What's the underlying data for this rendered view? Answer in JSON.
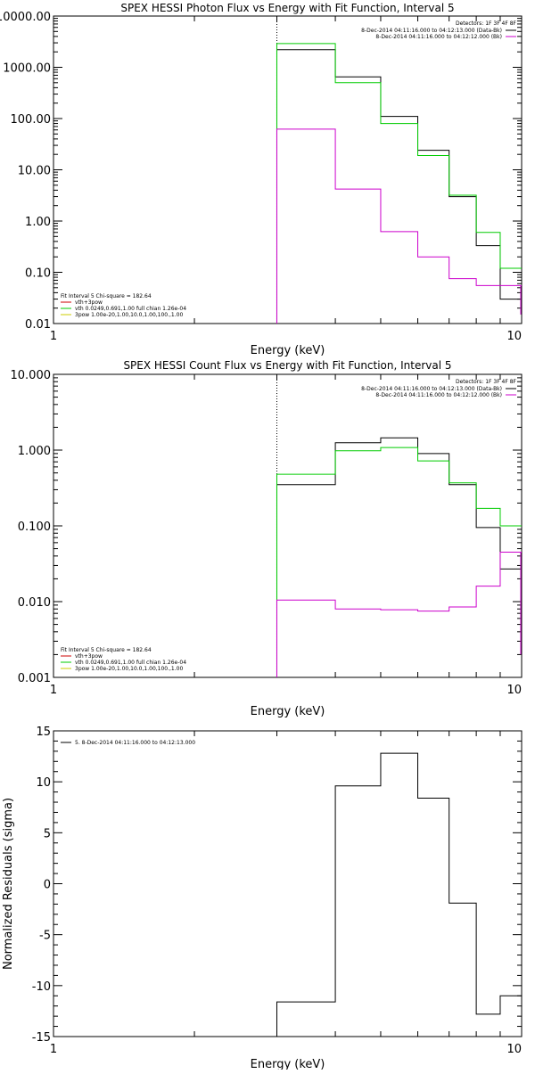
{
  "chart_data": [
    {
      "type": "line",
      "title": "SPEX HESSI Photon Flux vs Energy with Fit Function, Interval 5",
      "xlabel": "Energy (keV)",
      "ylabel": "",
      "xscale": "log",
      "yscale": "log",
      "xlim": [
        1,
        10
      ],
      "ylim": [
        0.01,
        10000
      ],
      "x_ticks": [
        {
          "v": 1,
          "label": "1"
        },
        {
          "v": 10,
          "label": "10"
        }
      ],
      "y_ticks": [
        {
          "v": 0.01,
          "label": "0.01"
        },
        {
          "v": 0.1,
          "label": "0.10"
        },
        {
          "v": 1,
          "label": "1.00"
        },
        {
          "v": 10,
          "label": "10.00"
        },
        {
          "v": 100,
          "label": "100.00"
        },
        {
          "v": 1000,
          "label": "1000.00"
        },
        {
          "v": 10000,
          "label": "10000.00"
        }
      ],
      "vline_x": 3.0,
      "detectors": "Detectors: 1F 3F 4F 8F",
      "legend_right": [
        {
          "label": "8-Dec-2014 04:11:16.000 to 04:12:13.000 (Data-Bk)",
          "color": "#000000"
        },
        {
          "label": "8-Dec-2014 04:11:16.000 to 04:12:12.000 (Bk)",
          "color": "#cc00cc"
        }
      ],
      "legend_left": [
        {
          "label": "Fit Interval 5   Chi-square = 182.64",
          "color": ""
        },
        {
          "label": "vth+3pow",
          "color": "#cc0000"
        },
        {
          "label": "vth 0.0249,0.691,1.00  full chian 1.26e-04",
          "color": "#00cc00"
        },
        {
          "label": "3pow 1.00e-20,1.00,10.0,1.00,100.,1.00",
          "color": "#cccc00"
        }
      ],
      "bin_edges": [
        3.0,
        4.0,
        5.0,
        6.0,
        7.0,
        8.0,
        9.0,
        10.0
      ],
      "series": [
        {
          "color": "#000000",
          "values": [
            2200,
            650,
            110,
            24,
            3.0,
            0.33,
            0.03
          ]
        },
        {
          "color": "#00cc00",
          "values": [
            2900,
            500,
            80,
            19,
            3.2,
            0.6,
            0.12
          ]
        },
        {
          "color": "#cc00cc",
          "values": [
            62,
            4.2,
            0.62,
            0.2,
            0.075,
            0.055,
            0.055
          ]
        }
      ],
      "tail": {
        "x": 10.0,
        "color": "#cc00cc",
        "y_from": 0.055,
        "y_to": 0.015
      }
    },
    {
      "type": "line",
      "title": "SPEX HESSI Count Flux vs Energy with Fit Function, Interval 5",
      "xlabel": "Energy (keV)",
      "ylabel": "",
      "xscale": "log",
      "yscale": "log",
      "xlim": [
        1,
        10
      ],
      "ylim": [
        0.001,
        10
      ],
      "x_ticks": [
        {
          "v": 1,
          "label": "1"
        },
        {
          "v": 10,
          "label": "10"
        }
      ],
      "y_ticks": [
        {
          "v": 0.001,
          "label": "0.001"
        },
        {
          "v": 0.01,
          "label": "0.010"
        },
        {
          "v": 0.1,
          "label": "0.100"
        },
        {
          "v": 1,
          "label": "1.000"
        },
        {
          "v": 10,
          "label": "10.000"
        }
      ],
      "vline_x": 3.0,
      "detectors": "Detectors: 1F 3F 4F 8F",
      "legend_right": [
        {
          "label": "8-Dec-2014 04:11:16.000 to 04:12:13.000 (Data-Bk)",
          "color": "#000000"
        },
        {
          "label": "8-Dec-2014 04:11:16.000 to 04:12:12.000 (Bk)",
          "color": "#cc00cc"
        }
      ],
      "legend_left": [
        {
          "label": "Fit Interval 5   Chi-square = 182.64",
          "color": ""
        },
        {
          "label": "vth+3pow",
          "color": "#cc0000"
        },
        {
          "label": "vth 0.0249,0.691,1.00  full chian 1.26e-04",
          "color": "#00cc00"
        },
        {
          "label": "3pow 1.00e-20,1.00,10.0,1.00,100.,1.00",
          "color": "#cccc00"
        }
      ],
      "bin_edges": [
        3.0,
        4.0,
        5.0,
        6.0,
        7.0,
        8.0,
        9.0,
        10.0
      ],
      "series": [
        {
          "color": "#000000",
          "values": [
            0.35,
            1.25,
            1.45,
            0.9,
            0.35,
            0.095,
            0.027
          ]
        },
        {
          "color": "#00cc00",
          "values": [
            0.48,
            0.98,
            1.08,
            0.72,
            0.37,
            0.17,
            0.1
          ]
        },
        {
          "color": "#cc00cc",
          "values": [
            0.0105,
            0.008,
            0.0078,
            0.0075,
            0.0085,
            0.016,
            0.045
          ]
        }
      ],
      "tail": {
        "x": 10.0,
        "color": "#cc00cc",
        "y_from": 0.045,
        "y_to": 0.002
      }
    },
    {
      "type": "line",
      "title": "",
      "xlabel": "Energy (keV)",
      "ylabel": "Normalized Residuals (sigma)",
      "xscale": "log",
      "yscale": "linear",
      "xlim": [
        1,
        10
      ],
      "ylim": [
        -15,
        15
      ],
      "x_ticks": [
        {
          "v": 1,
          "label": "1"
        },
        {
          "v": 10,
          "label": "10"
        }
      ],
      "y_ticks": [
        {
          "v": 15,
          "label": "15"
        },
        {
          "v": 10,
          "label": "10"
        },
        {
          "v": 5,
          "label": "5"
        },
        {
          "v": 0,
          "label": "0"
        },
        {
          "v": -5,
          "label": "-5"
        },
        {
          "v": -10,
          "label": "-10"
        },
        {
          "v": -15,
          "label": "-15"
        }
      ],
      "legend_left": [
        {
          "label": "5. 8-Dec-2014 04:11:16.000 to 04:12:13.000",
          "color": "#000000"
        }
      ],
      "bin_edges": [
        3.0,
        4.0,
        5.0,
        6.0,
        7.0,
        8.0,
        9.0,
        10.0
      ],
      "series": [
        {
          "color": "#000000",
          "values": [
            -11.6,
            9.6,
            12.8,
            8.4,
            -1.9,
            -12.8,
            -11.0
          ]
        }
      ]
    }
  ]
}
